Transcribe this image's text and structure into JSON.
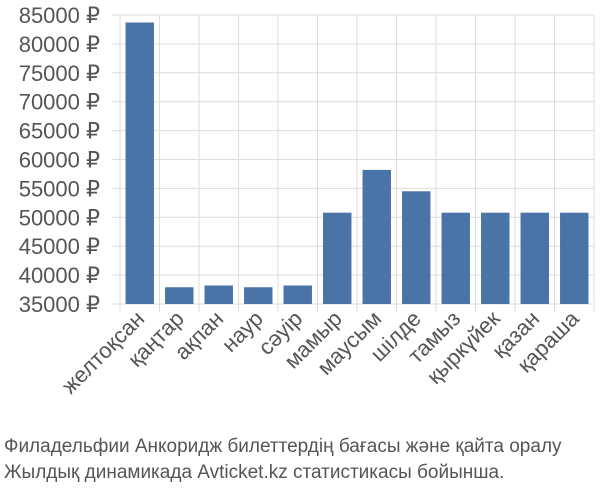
{
  "chart_data": {
    "type": "bar",
    "categories": [
      "желтоқсан",
      "қаңтар",
      "ақпан",
      "наур",
      "сәуір",
      "мамыр",
      "маусым",
      "шілде",
      "тамыз",
      "қыркүйек",
      "қазан",
      "қараша"
    ],
    "values": [
      83700,
      37900,
      38200,
      37900,
      38200,
      50800,
      58200,
      54500,
      50800,
      50800,
      50800,
      50800
    ],
    "ylim": [
      35000,
      85000
    ],
    "yticks": [
      35000,
      40000,
      45000,
      50000,
      55000,
      60000,
      65000,
      70000,
      75000,
      80000,
      85000
    ],
    "ytick_labels": [
      "35000 ₽",
      "40000 ₽",
      "45000 ₽",
      "50000 ₽",
      "55000 ₽",
      "60000 ₽",
      "65000 ₽",
      "70000 ₽",
      "75000 ₽",
      "80000 ₽",
      "85000 ₽"
    ],
    "grid": true,
    "bar_color": "#4a74a8",
    "grid_color": "#dddddd"
  },
  "caption": {
    "line1": "Филадельфии Анкоридж билеттердің бағасы және қайта оралу",
    "line2": "Жылдық динамикада Avticket.kz статистикасы бойынша."
  }
}
